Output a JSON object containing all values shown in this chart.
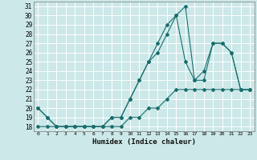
{
  "xlabel": "Humidex (Indice chaleur)",
  "bg_color": "#cce8e8",
  "grid_color": "#ffffff",
  "line_color": "#1a6e6e",
  "xlim": [
    -0.5,
    23.5
  ],
  "ylim": [
    17.5,
    31.5
  ],
  "xticks": [
    0,
    1,
    2,
    3,
    4,
    5,
    6,
    7,
    8,
    9,
    10,
    11,
    12,
    13,
    14,
    15,
    16,
    17,
    18,
    19,
    20,
    21,
    22,
    23
  ],
  "yticks": [
    18,
    19,
    20,
    21,
    22,
    23,
    24,
    25,
    26,
    27,
    28,
    29,
    30,
    31
  ],
  "series1_x": [
    0,
    1,
    2,
    3,
    4,
    5,
    6,
    7,
    8,
    9,
    10,
    11,
    12,
    13,
    14,
    15,
    16,
    17,
    18,
    19,
    20,
    21,
    22,
    23
  ],
  "series1_y": [
    20,
    19,
    18,
    18,
    18,
    18,
    18,
    18,
    19,
    19,
    21,
    23,
    25,
    27,
    29,
    30,
    31,
    23,
    23,
    27,
    27,
    26,
    22,
    22
  ],
  "series2_x": [
    0,
    1,
    2,
    3,
    4,
    5,
    6,
    7,
    8,
    9,
    10,
    11,
    12,
    13,
    14,
    15,
    16,
    17,
    18,
    19,
    20,
    21,
    22,
    23
  ],
  "series2_y": [
    20,
    19,
    18,
    18,
    18,
    18,
    18,
    18,
    19,
    19,
    21,
    23,
    25,
    26,
    28,
    30,
    25,
    23,
    24,
    27,
    27,
    26,
    22,
    22
  ],
  "series3_x": [
    0,
    1,
    2,
    3,
    4,
    5,
    6,
    7,
    8,
    9,
    10,
    11,
    12,
    13,
    14,
    15,
    16,
    17,
    18,
    19,
    20,
    21,
    22,
    23
  ],
  "series3_y": [
    18,
    18,
    18,
    18,
    18,
    18,
    18,
    18,
    18,
    18,
    19,
    19,
    20,
    20,
    21,
    22,
    22,
    22,
    22,
    22,
    22,
    22,
    22,
    22
  ]
}
